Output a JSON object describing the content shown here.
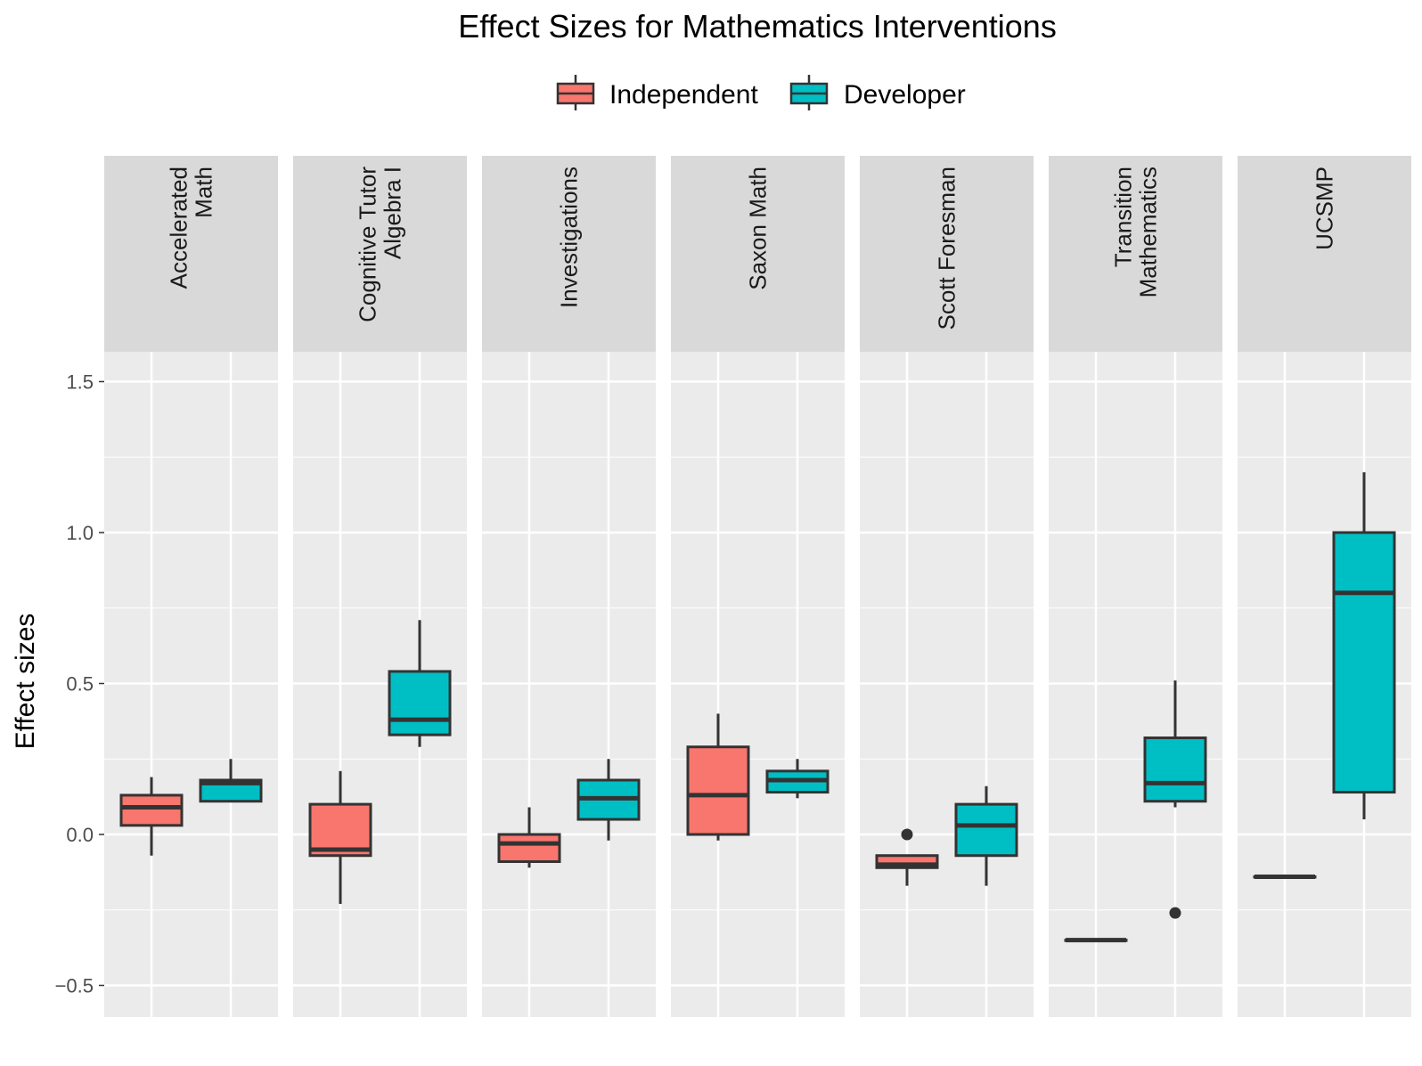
{
  "chart_data": {
    "type": "boxplot",
    "title": "Effect Sizes for Mathematics Interventions",
    "ylabel": "Effect sizes",
    "xlabel": "",
    "ylim": [
      -0.6,
      1.6
    ],
    "yticks": [
      -0.5,
      0.0,
      0.5,
      1.0,
      1.5
    ],
    "ytick_labels": [
      "−0.5",
      "0.0",
      "0.5",
      "1.0",
      "1.5"
    ],
    "grid": true,
    "legend_position": "top",
    "series": [
      {
        "name": "Independent",
        "color": "#F8766D"
      },
      {
        "name": "Developer",
        "color": "#00BFC4"
      }
    ],
    "facets": [
      {
        "label": [
          "Accelerated",
          "Math"
        ],
        "boxes": [
          {
            "series": "Independent",
            "min": -0.07,
            "q1": 0.03,
            "median": 0.09,
            "q3": 0.13,
            "max": 0.19,
            "outliers": []
          },
          {
            "series": "Developer",
            "min": 0.11,
            "q1": 0.11,
            "median": 0.17,
            "q3": 0.18,
            "max": 0.25,
            "outliers": []
          }
        ]
      },
      {
        "label": [
          "Cognitive Tutor",
          "Algebra I"
        ],
        "boxes": [
          {
            "series": "Independent",
            "min": -0.23,
            "q1": -0.07,
            "median": -0.05,
            "q3": 0.1,
            "max": 0.21,
            "outliers": []
          },
          {
            "series": "Developer",
            "min": 0.29,
            "q1": 0.33,
            "median": 0.38,
            "q3": 0.54,
            "max": 0.71,
            "outliers": []
          }
        ]
      },
      {
        "label": [
          "Investigations"
        ],
        "boxes": [
          {
            "series": "Independent",
            "min": -0.11,
            "q1": -0.09,
            "median": -0.03,
            "q3": 0.0,
            "max": 0.09,
            "outliers": []
          },
          {
            "series": "Developer",
            "min": -0.02,
            "q1": 0.05,
            "median": 0.12,
            "q3": 0.18,
            "max": 0.25,
            "outliers": []
          }
        ]
      },
      {
        "label": [
          "Saxon Math"
        ],
        "boxes": [
          {
            "series": "Independent",
            "min": -0.02,
            "q1": 0.0,
            "median": 0.13,
            "q3": 0.29,
            "max": 0.4,
            "outliers": []
          },
          {
            "series": "Developer",
            "min": 0.12,
            "q1": 0.14,
            "median": 0.18,
            "q3": 0.21,
            "max": 0.25,
            "outliers": []
          }
        ]
      },
      {
        "label": [
          "Scott Foresman"
        ],
        "boxes": [
          {
            "series": "Independent",
            "min": -0.17,
            "q1": -0.11,
            "median": -0.1,
            "q3": -0.07,
            "max": -0.07,
            "outliers": [
              0.0
            ]
          },
          {
            "series": "Developer",
            "min": -0.17,
            "q1": -0.07,
            "median": 0.03,
            "q3": 0.1,
            "max": 0.16,
            "outliers": []
          }
        ]
      },
      {
        "label": [
          "Transition",
          "Mathematics"
        ],
        "boxes": [
          {
            "series": "Independent",
            "min": -0.35,
            "q1": -0.35,
            "median": -0.35,
            "q3": -0.35,
            "max": -0.35,
            "outliers": []
          },
          {
            "series": "Developer",
            "min": 0.09,
            "q1": 0.11,
            "median": 0.17,
            "q3": 0.32,
            "max": 0.51,
            "outliers": [
              -0.26
            ]
          }
        ]
      },
      {
        "label": [
          "UCSMP"
        ],
        "boxes": [
          {
            "series": "Independent",
            "min": -0.14,
            "q1": -0.14,
            "median": -0.14,
            "q3": -0.14,
            "max": -0.14,
            "outliers": []
          },
          {
            "series": "Developer",
            "min": 0.05,
            "q1": 0.14,
            "median": 0.8,
            "q3": 1.0,
            "max": 1.2,
            "outliers": []
          }
        ]
      }
    ]
  },
  "colors": {
    "panel_background": "#EBEBEB",
    "strip_background": "#D9D9D9",
    "grid": "#FFFFFF",
    "box_outline": "#333333"
  }
}
